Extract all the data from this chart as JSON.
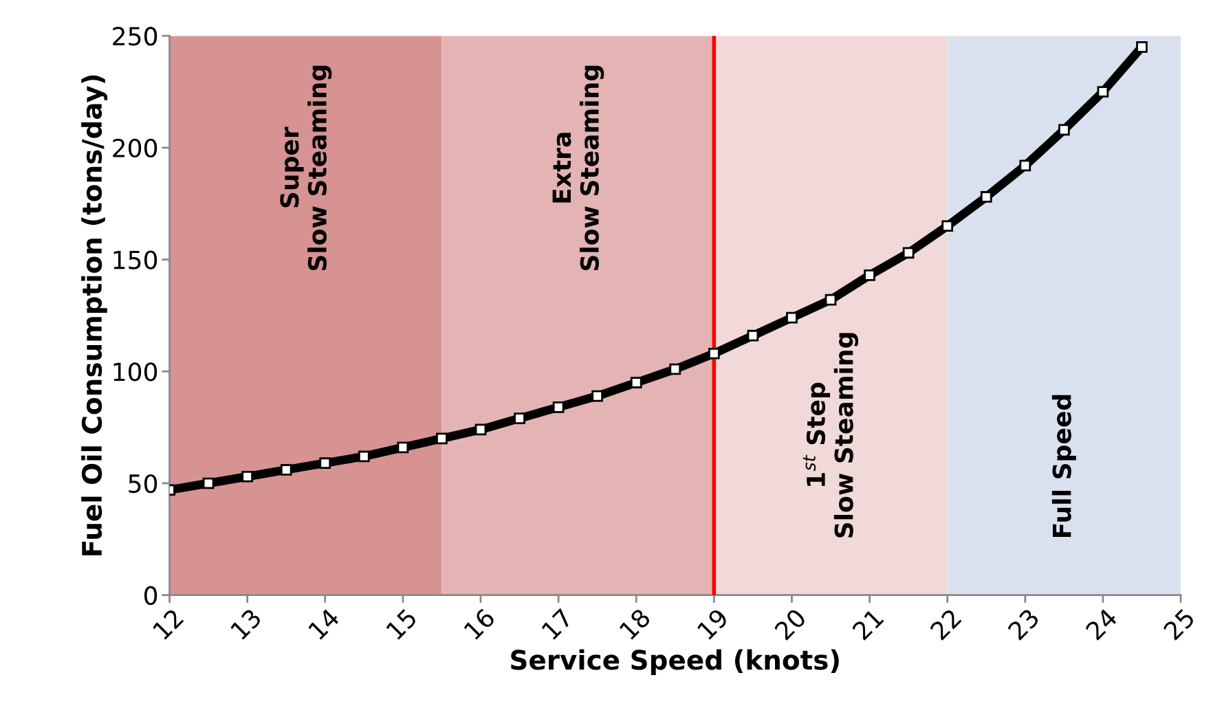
{
  "chart_data": {
    "type": "line",
    "xlabel": "Service Speed (knots)",
    "ylabel": "Fuel Oil Consumption (tons/day)",
    "x": [
      12,
      12.5,
      13,
      13.5,
      14,
      14.5,
      15,
      15.5,
      16,
      16.5,
      17,
      17.5,
      18,
      18.5,
      19,
      19.5,
      20,
      20.5,
      21,
      21.5,
      22,
      22.5,
      23,
      23.5,
      24,
      24.5
    ],
    "series": [
      {
        "color": "#000000",
        "values": [
          47,
          50,
          53,
          56,
          59,
          62,
          66,
          70,
          74,
          79,
          84,
          89,
          95,
          101,
          108,
          116,
          124,
          132,
          143,
          153,
          165,
          178,
          192,
          208,
          225,
          245
        ]
      }
    ],
    "xlim": [
      12,
      25
    ],
    "xticks": [
      12,
      13,
      14,
      15,
      16,
      17,
      18,
      19,
      20,
      21,
      22,
      23,
      24,
      25
    ],
    "ylim": [
      0,
      250
    ],
    "yticks": [
      0,
      50,
      100,
      150,
      200,
      250
    ],
    "bands": [
      {
        "axis": "x",
        "from": 12,
        "to": 15.5,
        "label": "Super\nSlow Steaming",
        "color": "#d69391"
      },
      {
        "axis": "x",
        "from": 15.5,
        "to": 19,
        "label": "Extra\nSlow Steaming",
        "color": "#e3b4b3"
      },
      {
        "axis": "x",
        "from": 19,
        "to": 22,
        "label": "1$^{st}$ Step\nSlow Steaming",
        "color": "#f0d9d8"
      },
      {
        "axis": "x",
        "from": 22,
        "to": 25,
        "label": "Full Speed",
        "color": "#d9e1ee"
      }
    ],
    "ref_lines": [
      {
        "axis": "x",
        "value": 19,
        "color": "#ff0000",
        "line_style": "solid"
      }
    ],
    "marker": "square",
    "line_style": "solid",
    "grid": false
  }
}
